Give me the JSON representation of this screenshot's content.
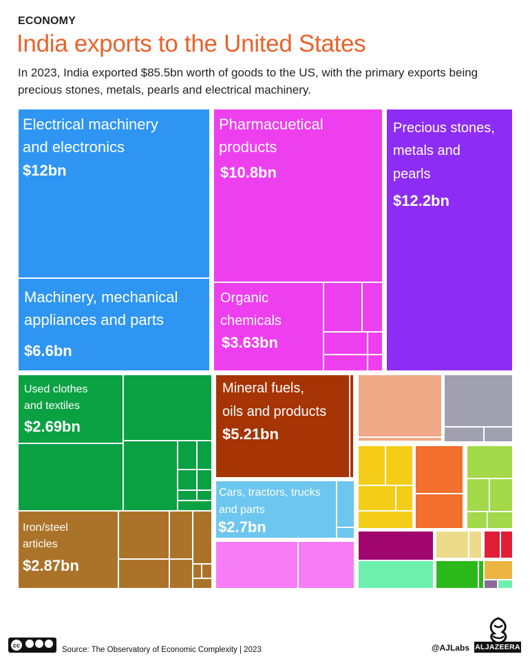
{
  "header": {
    "kicker": "ECONOMY",
    "title": "India exports to the United States",
    "subtitle": "In 2023, India exported $85.5bn worth of goods to the US, with the primary exports being precious stones, metals, pearls and electrical machinery."
  },
  "chart_data": {
    "type": "treemap",
    "unit": "$bn",
    "total": 85.5,
    "labeled_items": [
      {
        "label": "Electrical machinery and electronics",
        "value": 12,
        "value_label": "$12bn",
        "color": "#2e95f2"
      },
      {
        "label": "Pharmacuetical products",
        "value": 10.8,
        "value_label": "$10.8bn",
        "color": "#ee3fee"
      },
      {
        "label": "Precious stones, metals and pearls",
        "value": 12.2,
        "value_label": "$12.2bn",
        "color": "#8d2cf5"
      },
      {
        "label": "Machinery, mechanical appliances and parts",
        "value": 6.6,
        "value_label": "$6.6bn",
        "color": "#2e95f2"
      },
      {
        "label": "Organic chemicals",
        "value": 3.63,
        "value_label": "$3.63bn",
        "color": "#ee3fee"
      },
      {
        "label": "Used clothes and textiles",
        "value": 2.69,
        "value_label": "$2.69bn",
        "color": "#0aa143"
      },
      {
        "label": "Mineral fuels, oils and products",
        "value": 5.21,
        "value_label": "$5.21bn",
        "color": "#a63405"
      },
      {
        "label": "Cars, tractors, trucks and parts",
        "value": 2.7,
        "value_label": "$2.7bn",
        "color": "#6cc6ef"
      },
      {
        "label": "Iron/steel articles",
        "value": 2.87,
        "value_label": "$2.87bn",
        "color": "#ab7329"
      }
    ],
    "unlabeled_colors": [
      "#f0a987",
      "#a0a0b0",
      "#f3cd18",
      "#f26f2e",
      "#a3d94a",
      "#a1066f",
      "#ecdb8a",
      "#e01f37",
      "#6df0ae",
      "#2bb81a",
      "#ecb443",
      "#8e6a9a",
      "#f77df7"
    ]
  },
  "footer": {
    "source": "Source: The Observatory of Economic Complexity   |   2023",
    "handle": "@AJLabs",
    "brand": "ALJAZEERA",
    "license": "BY NC SA"
  }
}
